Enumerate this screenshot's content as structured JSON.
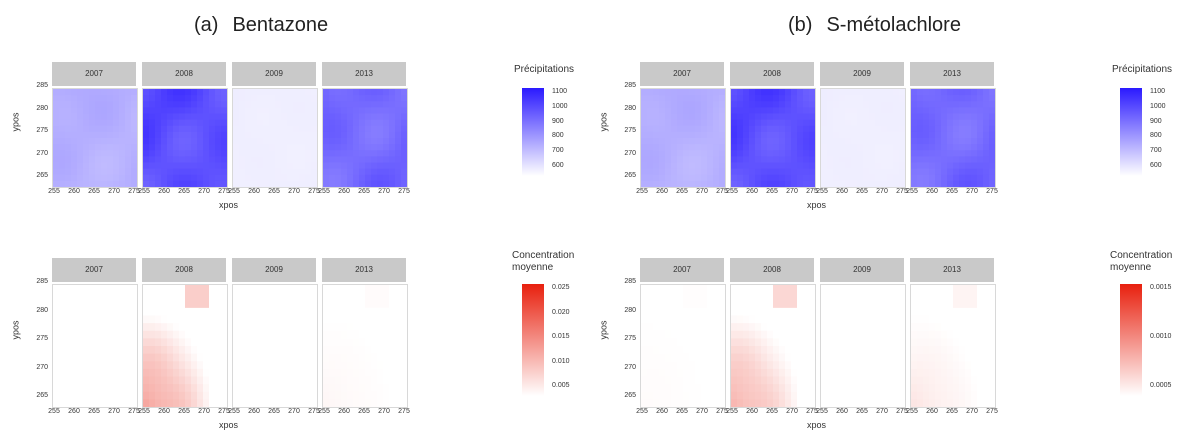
{
  "titles": {
    "a": {
      "tag": "(a)",
      "name": "Bentazone"
    },
    "b": {
      "tag": "(b)",
      "name": "S-métolachlore"
    }
  },
  "colors": {
    "precip_low": "#ffffff",
    "precip_high": "#2b1aff",
    "conc_low": "#ffffff",
    "conc_high": "#e8200e",
    "strip_bg": "#c9c9c9"
  },
  "chart_data": [
    {
      "type": "heatmap",
      "panel": "a-top",
      "facets": [
        "2007",
        "2008",
        "2009",
        "2013"
      ],
      "xlabel": "xpos",
      "ylabel": "ypos",
      "xticks": [
        "255",
        "260",
        "265",
        "270",
        "275"
      ],
      "yticks": [
        "285",
        "280",
        "275",
        "270",
        "265"
      ],
      "xlim": [
        255,
        275
      ],
      "ylim": [
        265,
        286
      ],
      "legend_title": "Précipitations",
      "legend_ticks": [
        "1100",
        "1000",
        "900",
        "800",
        "700",
        "600"
      ],
      "facet_intensity": [
        0.38,
        0.85,
        0.08,
        0.72
      ]
    },
    {
      "type": "heatmap",
      "panel": "b-top",
      "facets": [
        "2007",
        "2008",
        "2009",
        "2013"
      ],
      "xlabel": "xpos",
      "ylabel": "ypos",
      "xticks": [
        "255",
        "260",
        "265",
        "270",
        "275"
      ],
      "yticks": [
        "285",
        "280",
        "275",
        "270",
        "265"
      ],
      "xlim": [
        255,
        275
      ],
      "ylim": [
        265,
        286
      ],
      "legend_title": "Précipitations",
      "legend_ticks": [
        "1100",
        "1000",
        "900",
        "800",
        "700",
        "600"
      ],
      "facet_intensity": [
        0.38,
        0.85,
        0.08,
        0.72
      ]
    },
    {
      "type": "heatmap",
      "panel": "a-bottom",
      "facets": [
        "2007",
        "2008",
        "2009",
        "2013"
      ],
      "xlabel": "xpos",
      "ylabel": "ypos",
      "xticks": [
        "255",
        "260",
        "265",
        "270",
        "275"
      ],
      "yticks": [
        "285",
        "280",
        "275",
        "270",
        "265"
      ],
      "xlim": [
        255,
        275
      ],
      "ylim": [
        265,
        286
      ],
      "legend_title": [
        "Concentration",
        "moyenne"
      ],
      "legend_ticks": [
        "0.025",
        "0.020",
        "0.015",
        "0.010",
        "0.005"
      ],
      "facet_intensity": [
        0.0,
        0.55,
        0.0,
        0.04
      ]
    },
    {
      "type": "heatmap",
      "panel": "b-bottom",
      "facets": [
        "2007",
        "2008",
        "2009",
        "2013"
      ],
      "xlabel": "xpos",
      "ylabel": "ypos",
      "xticks": [
        "255",
        "260",
        "265",
        "270",
        "275"
      ],
      "yticks": [
        "285",
        "280",
        "275",
        "270",
        "265"
      ],
      "xlim": [
        255,
        275
      ],
      "ylim": [
        265,
        286
      ],
      "legend_title": [
        "Concentration",
        "moyenne"
      ],
      "legend_ticks": [
        "0.0015",
        "0.0010",
        "0.0005"
      ],
      "facet_intensity": [
        0.02,
        0.45,
        0.0,
        0.12
      ]
    }
  ]
}
